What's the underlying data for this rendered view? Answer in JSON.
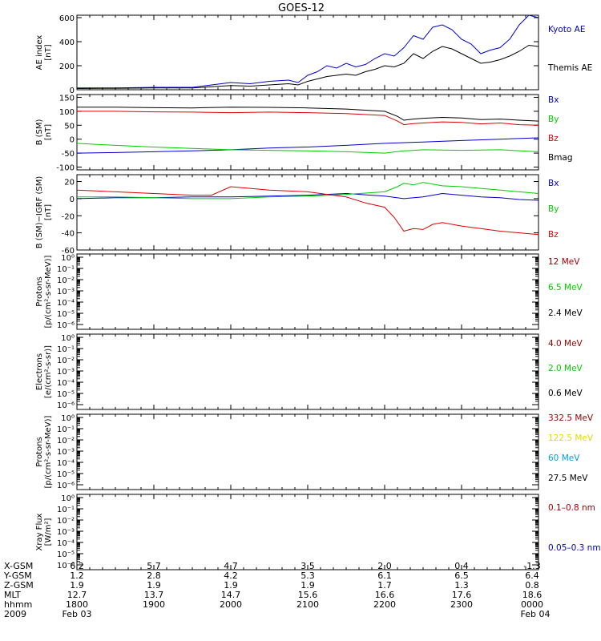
{
  "title": "GOES-12",
  "colors": {
    "black": "#000000",
    "blue": "#0000cc",
    "red": "#dd0000",
    "green": "#00cc00",
    "darkred": "#990000",
    "yellow": "#e6d800",
    "cyan": "#00a0e0"
  },
  "chart_data": [
    {
      "type": "line",
      "panel": "ae-index",
      "ylabel": "AE index\n[nT]",
      "ylim": [
        0,
        620
      ],
      "yticks": [
        0,
        200,
        400,
        600
      ],
      "series": [
        {
          "name": "Kyoto AE",
          "color": "blue",
          "x": [
            0,
            60,
            120,
            180,
            210,
            240,
            270,
            300,
            330,
            345,
            360,
            375,
            390,
            405,
            420,
            435,
            450,
            465,
            480,
            495,
            510,
            525,
            540,
            555,
            570,
            585,
            600,
            615,
            630,
            645,
            660,
            675,
            690,
            705,
            720
          ],
          "y": [
            15,
            15,
            20,
            20,
            40,
            60,
            50,
            70,
            80,
            60,
            120,
            150,
            200,
            180,
            220,
            190,
            210,
            260,
            300,
            280,
            350,
            450,
            420,
            520,
            540,
            500,
            420,
            380,
            300,
            330,
            350,
            420,
            540,
            620,
            600
          ]
        },
        {
          "name": "Themis AE",
          "color": "black",
          "x": [
            0,
            60,
            120,
            180,
            210,
            240,
            270,
            300,
            330,
            345,
            360,
            375,
            390,
            405,
            420,
            435,
            450,
            465,
            480,
            495,
            510,
            525,
            540,
            555,
            570,
            585,
            600,
            615,
            630,
            645,
            660,
            675,
            690,
            705,
            720
          ],
          "y": [
            10,
            12,
            15,
            15,
            25,
            35,
            30,
            40,
            50,
            40,
            70,
            90,
            110,
            120,
            130,
            120,
            150,
            170,
            200,
            190,
            220,
            300,
            260,
            320,
            360,
            340,
            300,
            260,
            220,
            230,
            250,
            280,
            320,
            370,
            360
          ]
        }
      ]
    },
    {
      "type": "line",
      "panel": "b-sm",
      "ylabel": "B (SM)\n[nT]",
      "ylim": [
        -110,
        160
      ],
      "yticks": [
        -100,
        -50,
        0,
        50,
        100,
        150
      ],
      "series": [
        {
          "name": "Bx",
          "color": "blue",
          "x": [
            0,
            60,
            120,
            180,
            240,
            300,
            360,
            420,
            480,
            540,
            600,
            660,
            720
          ],
          "y": [
            -50,
            -48,
            -45,
            -42,
            -38,
            -32,
            -28,
            -22,
            -15,
            -10,
            -5,
            0,
            5
          ]
        },
        {
          "name": "By",
          "color": "green",
          "x": [
            0,
            60,
            120,
            180,
            240,
            300,
            360,
            420,
            480,
            510,
            540,
            600,
            660,
            720
          ],
          "y": [
            -15,
            -22,
            -28,
            -33,
            -38,
            -40,
            -42,
            -45,
            -50,
            -42,
            -38,
            -40,
            -38,
            -45
          ]
        },
        {
          "name": "Bz",
          "color": "red",
          "x": [
            0,
            60,
            120,
            180,
            240,
            300,
            360,
            420,
            480,
            500,
            510,
            525,
            540,
            570,
            600,
            630,
            660,
            690,
            720
          ],
          "y": [
            100,
            100,
            98,
            97,
            95,
            97,
            95,
            92,
            85,
            65,
            52,
            56,
            58,
            62,
            60,
            55,
            58,
            52,
            50
          ]
        },
        {
          "name": "Bmag",
          "color": "black",
          "x": [
            0,
            60,
            120,
            180,
            240,
            300,
            360,
            420,
            480,
            500,
            510,
            525,
            540,
            570,
            600,
            630,
            660,
            690,
            720
          ],
          "y": [
            115,
            115,
            113,
            112,
            115,
            114,
            112,
            108,
            100,
            82,
            68,
            72,
            75,
            78,
            76,
            70,
            72,
            68,
            65
          ]
        }
      ]
    },
    {
      "type": "line",
      "panel": "b-minus-igrf",
      "ylabel": "B (SM)−IGRF (SM)\n[nT]",
      "ylim": [
        -60,
        28
      ],
      "yticks": [
        -60,
        -40,
        -20,
        0,
        20
      ],
      "series": [
        {
          "name": "Bx",
          "color": "blue",
          "x": [
            0,
            60,
            120,
            180,
            240,
            300,
            360,
            420,
            480,
            510,
            540,
            570,
            600,
            630,
            660,
            690,
            720
          ],
          "y": [
            0,
            1,
            1,
            2,
            2,
            3,
            4,
            6,
            3,
            0,
            2,
            6,
            4,
            2,
            1,
            -1,
            -2
          ]
        },
        {
          "name": "By",
          "color": "green",
          "x": [
            0,
            60,
            120,
            180,
            240,
            300,
            360,
            420,
            480,
            500,
            510,
            525,
            540,
            570,
            600,
            630,
            660,
            690,
            720
          ],
          "y": [
            2,
            2,
            1,
            0,
            0,
            2,
            3,
            5,
            8,
            14,
            18,
            16,
            19,
            15,
            14,
            12,
            10,
            8,
            6
          ]
        },
        {
          "name": "Bz",
          "color": "red",
          "x": [
            0,
            60,
            120,
            180,
            210,
            240,
            270,
            300,
            360,
            420,
            450,
            480,
            495,
            510,
            525,
            540,
            555,
            570,
            600,
            630,
            660,
            690,
            720
          ],
          "y": [
            10,
            8,
            6,
            4,
            4,
            14,
            12,
            10,
            8,
            2,
            -5,
            -10,
            -22,
            -38,
            -35,
            -36,
            -30,
            -28,
            -32,
            -35,
            -38,
            -40,
            -42
          ]
        }
      ]
    },
    {
      "type": "line",
      "panel": "protons-epead",
      "ylabel": "Protons\n[p/(cm²-s-sr-MeV)]",
      "yscale": "log",
      "ylim": [
        1e-06,
        1
      ],
      "yticks": [
        "10⁰",
        "10⁻¹",
        "10⁻²",
        "10⁻³",
        "10⁻⁴",
        "10⁻⁵",
        "10⁻⁶"
      ],
      "series": [
        {
          "name": "12 MeV",
          "color": "darkred",
          "x": [],
          "y": []
        },
        {
          "name": "6.5 MeV",
          "color": "green",
          "x": [],
          "y": []
        },
        {
          "name": "2.4 MeV",
          "color": "black",
          "x": [],
          "y": []
        }
      ]
    },
    {
      "type": "line",
      "panel": "electrons",
      "ylabel": "Electrons\n[e/(cm²-s-sr)]",
      "yscale": "log",
      "ylim": [
        1e-06,
        1
      ],
      "yticks": [
        "10⁰",
        "10⁻¹",
        "10⁻²",
        "10⁻³",
        "10⁻⁴",
        "10⁻⁵",
        "10⁻⁶"
      ],
      "series": [
        {
          "name": "4.0 MeV",
          "color": "darkred",
          "x": [],
          "y": []
        },
        {
          "name": "2.0 MeV",
          "color": "green",
          "x": [],
          "y": []
        },
        {
          "name": "0.6 MeV",
          "color": "black",
          "x": [],
          "y": []
        }
      ]
    },
    {
      "type": "line",
      "panel": "protons-hepad",
      "ylabel": "Protons\n[p/(cm²-s-sr-MeV)]",
      "yscale": "log",
      "ylim": [
        1e-06,
        1
      ],
      "yticks": [
        "10⁰",
        "10⁻¹",
        "10⁻²",
        "10⁻³",
        "10⁻⁴",
        "10⁻⁵",
        "10⁻⁶"
      ],
      "series": [
        {
          "name": "332.5 MeV",
          "color": "darkred",
          "x": [],
          "y": []
        },
        {
          "name": "122.5 MeV",
          "color": "yellow",
          "x": [],
          "y": []
        },
        {
          "name": "60 MeV",
          "color": "cyan",
          "x": [],
          "y": []
        },
        {
          "name": "27.5 MeV",
          "color": "black",
          "x": [],
          "y": []
        }
      ]
    },
    {
      "type": "line",
      "panel": "xray-flux",
      "ylabel": "Xray Flux\n[W/m²]",
      "yscale": "log",
      "ylim": [
        1e-06,
        1
      ],
      "yticks": [
        "10⁰",
        "10⁻¹",
        "10⁻²",
        "10⁻³",
        "10⁻⁴",
        "10⁻⁵",
        "10⁻⁶"
      ],
      "series": [
        {
          "name": "0.1–0.8 nm",
          "color": "darkred",
          "x": [],
          "y": []
        },
        {
          "name": "0.05–0.3 nm",
          "color": "blue",
          "x": [],
          "y": []
        }
      ]
    }
  ],
  "footer": {
    "rows": [
      {
        "label": "X-GSM",
        "values": [
          "6.2",
          "5.7",
          "4.7",
          "3.5",
          "2.0",
          "0.4",
          "-1.3"
        ]
      },
      {
        "label": "Y-GSM",
        "values": [
          "1.2",
          "2.8",
          "4.2",
          "5.3",
          "6.1",
          "6.5",
          "6.4"
        ]
      },
      {
        "label": "Z-GSM",
        "values": [
          "1.9",
          "1.9",
          "1.9",
          "1.9",
          "1.7",
          "1.3",
          "0.8"
        ]
      },
      {
        "label": "MLT",
        "values": [
          "12.7",
          "13.7",
          "14.7",
          "15.6",
          "16.6",
          "17.6",
          "18.6"
        ]
      },
      {
        "label": "hhmm",
        "values": [
          "1800",
          "1900",
          "2000",
          "2100",
          "2200",
          "2300",
          "0000"
        ]
      },
      {
        "label": "2009",
        "values": [
          "Feb 03",
          "",
          "",
          "",
          "",
          "",
          "Feb 04"
        ]
      }
    ]
  }
}
